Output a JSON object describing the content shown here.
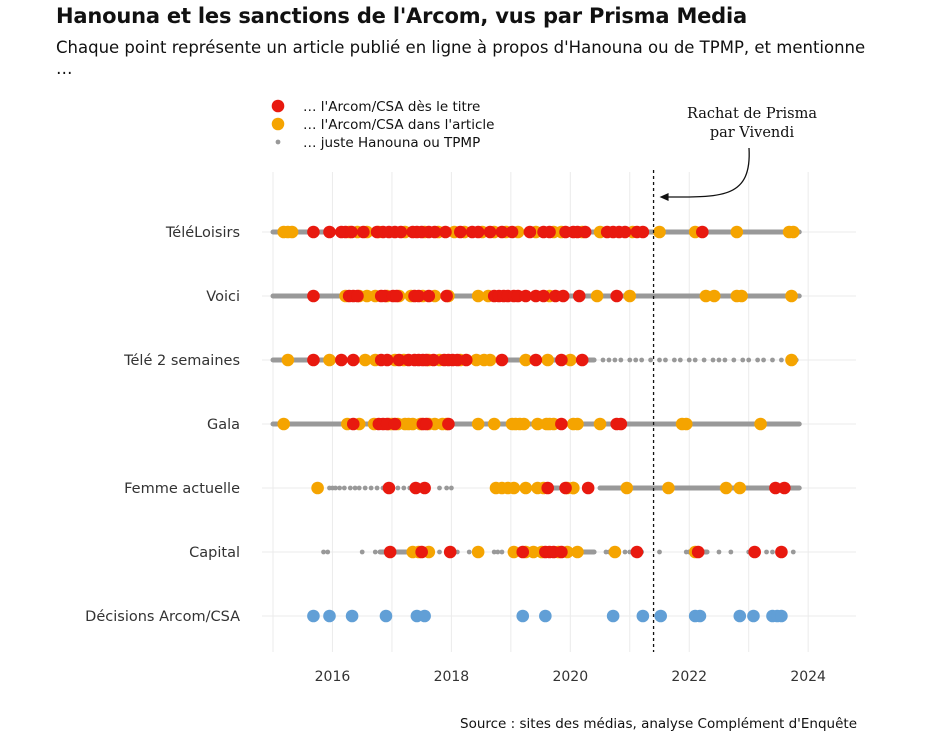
{
  "header": {
    "title": "Hanouna et les sanctions de l'Arcom, vus par Prisma Media",
    "subtitle": "Chaque point représente un article publié en ligne à propos d'Hanouna ou de TPMP, et mentionne …"
  },
  "footer": {
    "source": "Source : sites des médias, analyse Complément d'Enquête"
  },
  "chart_data": {
    "type": "scatter",
    "x_range": [
      2015.0,
      2024.3
    ],
    "x_ticks": [
      2016,
      2018,
      2020,
      2022,
      2024
    ],
    "grid": true,
    "legend_placement": "top-left",
    "colors": {
      "titre": "#e8190f",
      "article": "#f5a400",
      "juste": "#999999",
      "decision": "#619fd6"
    },
    "legend": [
      {
        "key": "titre",
        "label": "… l'Arcom/CSA dès le titre"
      },
      {
        "key": "article",
        "label": "… l'Arcom/CSA dans l'article"
      },
      {
        "key": "juste",
        "label": "… juste Hanouna ou TPMP"
      }
    ],
    "annotation": {
      "x": 2021.4,
      "line1": "Rachat de Prisma",
      "line2": "par Vivendi"
    },
    "rows": [
      {
        "name": "TéléLoisirs",
        "juste_segments": [
          [
            2015.0,
            2023.85
          ]
        ],
        "article": [
          2015.18,
          2015.25,
          2015.32,
          2016.28,
          2016.42,
          2016.58,
          2016.78,
          2017.22,
          2017.55,
          2017.78,
          2018.05,
          2018.22,
          2018.52,
          2018.72,
          2018.92,
          2019.12,
          2019.42,
          2019.72,
          2019.85,
          2020.2,
          2020.5,
          2021.05,
          2021.5,
          2022.1,
          2022.8,
          2023.68,
          2023.75
        ],
        "titre": [
          2015.68,
          2015.95,
          2016.15,
          2016.22,
          2016.32,
          2016.52,
          2016.75,
          2016.85,
          2016.95,
          2017.05,
          2017.15,
          2017.35,
          2017.42,
          2017.5,
          2017.62,
          2017.72,
          2017.9,
          2018.15,
          2018.35,
          2018.45,
          2018.65,
          2018.85,
          2019.02,
          2019.32,
          2019.55,
          2019.65,
          2019.92,
          2020.05,
          2020.12,
          2020.25,
          2020.62,
          2020.72,
          2020.82,
          2020.92,
          2021.12,
          2021.22,
          2022.22
        ]
      },
      {
        "name": "Voici",
        "juste_segments": [
          [
            2015.0,
            2023.85
          ]
        ],
        "article": [
          2016.22,
          2016.45,
          2016.58,
          2016.72,
          2016.92,
          2017.12,
          2017.32,
          2017.52,
          2017.72,
          2017.95,
          2018.45,
          2018.62,
          2019.65,
          2020.45,
          2021.0,
          2022.28,
          2022.42,
          2022.8,
          2022.88,
          2023.72
        ],
        "titre": [
          2015.68,
          2016.28,
          2016.35,
          2016.42,
          2016.82,
          2016.88,
          2017.02,
          2017.08,
          2017.38,
          2017.45,
          2017.62,
          2017.92,
          2018.72,
          2018.8,
          2018.88,
          2018.95,
          2019.05,
          2019.12,
          2019.25,
          2019.42,
          2019.55,
          2019.75,
          2019.88,
          2020.15,
          2020.78
        ]
      },
      {
        "name": "Télé 2 semaines",
        "juste_segments": [
          [
            2015.0,
            2019.2
          ],
          [
            2019.2,
            2020.4
          ]
        ],
        "juste_x": [
          2019.4,
          2019.55,
          2019.7,
          2020.55,
          2020.65,
          2020.75,
          2020.85,
          2021.0,
          2021.1,
          2021.2,
          2021.35,
          2021.5,
          2021.6,
          2021.75,
          2021.85,
          2022.0,
          2022.1,
          2022.25,
          2022.4,
          2022.5,
          2022.6,
          2022.75,
          2022.9,
          2023.0,
          2023.15,
          2023.25,
          2023.4,
          2023.55,
          2023.8
        ],
        "article": [
          2015.25,
          2015.95,
          2016.55,
          2016.72,
          2017.05,
          2017.2,
          2017.62,
          2017.8,
          2018.15,
          2018.42,
          2018.55,
          2018.65,
          2019.25,
          2019.62,
          2020.0,
          2023.72
        ],
        "titre": [
          2015.68,
          2016.15,
          2016.35,
          2016.82,
          2016.92,
          2017.12,
          2017.28,
          2017.38,
          2017.45,
          2017.52,
          2017.58,
          2017.7,
          2017.88,
          2017.95,
          2018.02,
          2018.1,
          2018.25,
          2018.85,
          2019.42,
          2019.85,
          2020.2
        ]
      },
      {
        "name": "Gala",
        "juste_segments": [
          [
            2015.0,
            2023.85
          ]
        ],
        "article": [
          2015.18,
          2016.25,
          2016.45,
          2016.7,
          2016.95,
          2017.0,
          2017.1,
          2017.22,
          2017.28,
          2017.35,
          2017.48,
          2017.62,
          2017.72,
          2017.85,
          2017.92,
          2018.45,
          2018.72,
          2019.02,
          2019.08,
          2019.15,
          2019.22,
          2019.45,
          2019.6,
          2019.65,
          2019.72,
          2020.05,
          2020.12,
          2020.5,
          2021.88,
          2021.95,
          2023.2
        ],
        "titre": [
          2016.35,
          2016.78,
          2016.85,
          2016.92,
          2017.05,
          2017.52,
          2017.58,
          2017.95,
          2019.85,
          2020.78,
          2020.85
        ]
      },
      {
        "name": "Femme actuelle",
        "juste_segments": [
          [
            2018.8,
            2019.8
          ],
          [
            2020.5,
            2023.85
          ]
        ],
        "juste_x": [
          2015.95,
          2016.0,
          2016.05,
          2016.12,
          2016.2,
          2016.3,
          2016.38,
          2016.45,
          2016.55,
          2016.65,
          2016.75,
          2016.85,
          2017.1,
          2017.2,
          2017.3,
          2017.4,
          2017.8,
          2017.92,
          2018.0
        ],
        "article": [
          2015.75,
          2018.75,
          2018.85,
          2018.95,
          2019.05,
          2019.25,
          2019.45,
          2019.55,
          2019.95,
          2020.05,
          2020.05,
          2020.95,
          2021.65,
          2022.62,
          2022.85
        ],
        "titre": [
          2016.95,
          2017.4,
          2017.55,
          2019.62,
          2019.92,
          2020.3,
          2023.45,
          2023.6
        ]
      },
      {
        "name": "Capital",
        "juste_segments": [
          [
            2016.8,
            2017.3
          ],
          [
            2019.0,
            2020.4
          ],
          [
            2022.0,
            2022.3
          ]
        ],
        "juste_x": [
          2015.85,
          2015.92,
          2016.5,
          2016.72,
          2017.6,
          2017.8,
          2018.1,
          2018.3,
          2018.72,
          2018.78,
          2018.85,
          2020.6,
          2020.65,
          2020.92,
          2021.0,
          2021.2,
          2021.5,
          2021.95,
          2022.5,
          2022.7,
          2023.0,
          2023.3,
          2023.4,
          2023.75
        ],
        "article": [
          2017.35,
          2017.45,
          2017.62,
          2018.45,
          2019.05,
          2019.25,
          2019.38,
          2019.52,
          2019.8,
          2019.95,
          2020.12,
          2020.75,
          2022.1
        ],
        "titre": [
          2016.97,
          2017.5,
          2017.98,
          2019.2,
          2019.58,
          2019.65,
          2019.72,
          2019.85,
          2021.12,
          2022.15,
          2023.1,
          2023.55
        ]
      },
      {
        "name": "Décisions Arcom/CSA",
        "decision": [
          2015.68,
          2015.95,
          2016.33,
          2016.9,
          2017.42,
          2017.55,
          2019.2,
          2019.58,
          2020.72,
          2021.22,
          2021.52,
          2022.1,
          2022.18,
          2022.85,
          2023.08,
          2023.4,
          2023.48,
          2023.55
        ]
      }
    ]
  }
}
